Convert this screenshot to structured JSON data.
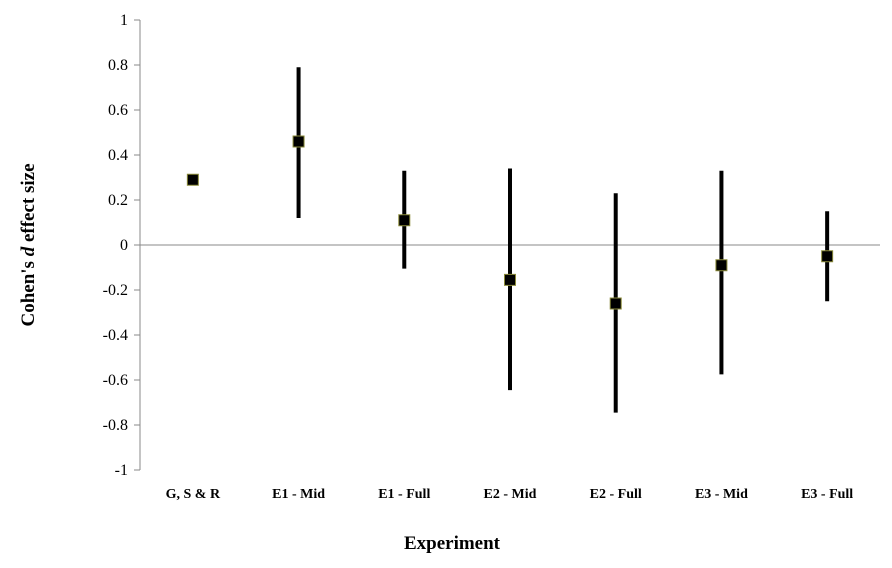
{
  "chart_data": {
    "type": "scatter",
    "xlabel": "Experiment",
    "ylabel_parts": [
      "Cohen's ",
      "d",
      " effect size"
    ],
    "ylim": [
      -1,
      1
    ],
    "yticks": [
      "1",
      "0.8",
      "0.6",
      "0.4",
      "0.2",
      "0",
      "-0.2",
      "-0.4",
      "-0.6",
      "-0.8",
      "-1"
    ],
    "ytick_values": [
      1,
      0.8,
      0.6,
      0.4,
      0.2,
      0,
      -0.2,
      -0.4,
      -0.6,
      -0.8,
      -1
    ],
    "categories": [
      "G, S & R",
      "E1 - Mid",
      "E1 - Full",
      "E2 - Mid",
      "E2 - Full",
      "E3 - Mid",
      "E3 - Full"
    ],
    "values": [
      0.29,
      0.46,
      0.11,
      -0.155,
      -0.26,
      -0.09,
      -0.05
    ],
    "ci_lower": [
      null,
      0.12,
      -0.105,
      -0.645,
      -0.745,
      -0.575,
      -0.25
    ],
    "ci_upper": [
      null,
      0.79,
      0.33,
      0.34,
      0.23,
      0.33,
      0.15
    ],
    "grid": false,
    "legend": "none",
    "colors": {
      "marker_fill": "#000000",
      "marker_outline": "#8a8a3a",
      "error_bar": "#000000",
      "axis": "#888888"
    }
  }
}
